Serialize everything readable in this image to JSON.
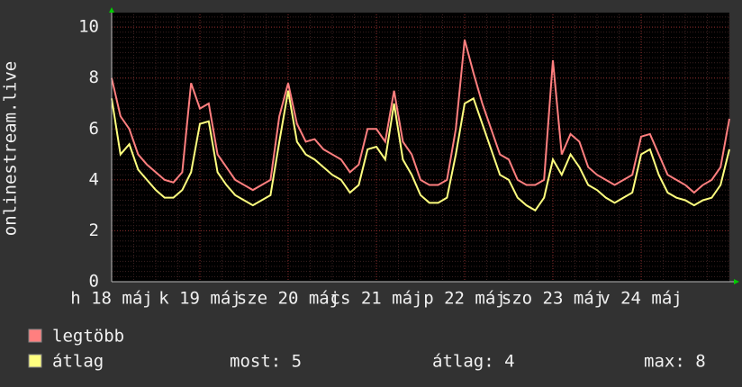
{
  "chart_data": {
    "type": "line",
    "y_label": "onlinestream.live",
    "xlim": [
      0,
      7
    ],
    "ylim": [
      0,
      10.5
    ],
    "xticks": [
      {
        "value": 0,
        "label": "h 18 máj"
      },
      {
        "value": 1,
        "label": "k 19 máj"
      },
      {
        "value": 2,
        "label": "sze 20 máj"
      },
      {
        "value": 3,
        "label": "cs 21 máj"
      },
      {
        "value": 4,
        "label": "p 22 máj"
      },
      {
        "value": 5,
        "label": "szo 23 máj"
      },
      {
        "value": 6,
        "label": "v 24 máj"
      }
    ],
    "yticks": [
      0,
      2,
      4,
      6,
      8,
      10
    ],
    "grid": true,
    "x": [
      0,
      0.1,
      0.2,
      0.3,
      0.4,
      0.5,
      0.6,
      0.7,
      0.8,
      0.9,
      1,
      1.1,
      1.2,
      1.3,
      1.4,
      1.5,
      1.6,
      1.7,
      1.8,
      1.9,
      2,
      2.1,
      2.2,
      2.3,
      2.4,
      2.5,
      2.6,
      2.7,
      2.8,
      2.9,
      3,
      3.1,
      3.2,
      3.3,
      3.4,
      3.5,
      3.6,
      3.7,
      3.8,
      3.9,
      4,
      4.1,
      4.2,
      4.3,
      4.4,
      4.5,
      4.6,
      4.7,
      4.8,
      4.9,
      5,
      5.1,
      5.2,
      5.3,
      5.4,
      5.5,
      5.6,
      5.7,
      5.8,
      5.9,
      6,
      6.1,
      6.2,
      6.3,
      6.4,
      6.5,
      6.6,
      6.7,
      6.8,
      6.9,
      7
    ],
    "series": [
      {
        "name": "legtöbb",
        "color": "#ff7f7f",
        "values": [
          8.0,
          6.5,
          6.0,
          5.0,
          4.6,
          4.3,
          4.0,
          3.9,
          4.3,
          7.8,
          6.8,
          7.0,
          5.0,
          4.5,
          4.0,
          3.8,
          3.6,
          3.8,
          4.0,
          6.5,
          7.8,
          6.2,
          5.5,
          5.6,
          5.2,
          5.0,
          4.8,
          4.3,
          4.6,
          6.0,
          6.0,
          5.5,
          7.5,
          5.5,
          5.0,
          4.0,
          3.8,
          3.8,
          4.0,
          6.0,
          9.5,
          8.2,
          7.0,
          6.0,
          5.0,
          4.8,
          4.0,
          3.8,
          3.8,
          4.0,
          8.7,
          5.0,
          5.8,
          5.5,
          4.5,
          4.2,
          4.0,
          3.8,
          4.0,
          4.2,
          5.7,
          5.8,
          5.0,
          4.2,
          4.0,
          3.8,
          3.5,
          3.8,
          4.0,
          4.5,
          6.4
        ]
      },
      {
        "name": "átlag",
        "color": "#ffff7f",
        "values": [
          7.2,
          5.0,
          5.4,
          4.4,
          4.0,
          3.6,
          3.3,
          3.3,
          3.6,
          4.3,
          6.2,
          6.3,
          4.3,
          3.8,
          3.4,
          3.2,
          3.0,
          3.2,
          3.4,
          5.5,
          7.5,
          5.5,
          5.0,
          4.8,
          4.5,
          4.2,
          4.0,
          3.5,
          3.8,
          5.2,
          5.3,
          4.8,
          7.0,
          4.8,
          4.2,
          3.4,
          3.1,
          3.1,
          3.3,
          5.0,
          7.0,
          7.2,
          6.2,
          5.2,
          4.2,
          4.0,
          3.3,
          3.0,
          2.8,
          3.3,
          4.8,
          4.2,
          5.0,
          4.5,
          3.8,
          3.6,
          3.3,
          3.1,
          3.3,
          3.5,
          5.0,
          5.2,
          4.2,
          3.5,
          3.3,
          3.2,
          3.0,
          3.2,
          3.3,
          3.8,
          5.2
        ]
      }
    ],
    "stats": [
      "most: 5",
      "átlag: 4",
      "max: 8"
    ]
  }
}
